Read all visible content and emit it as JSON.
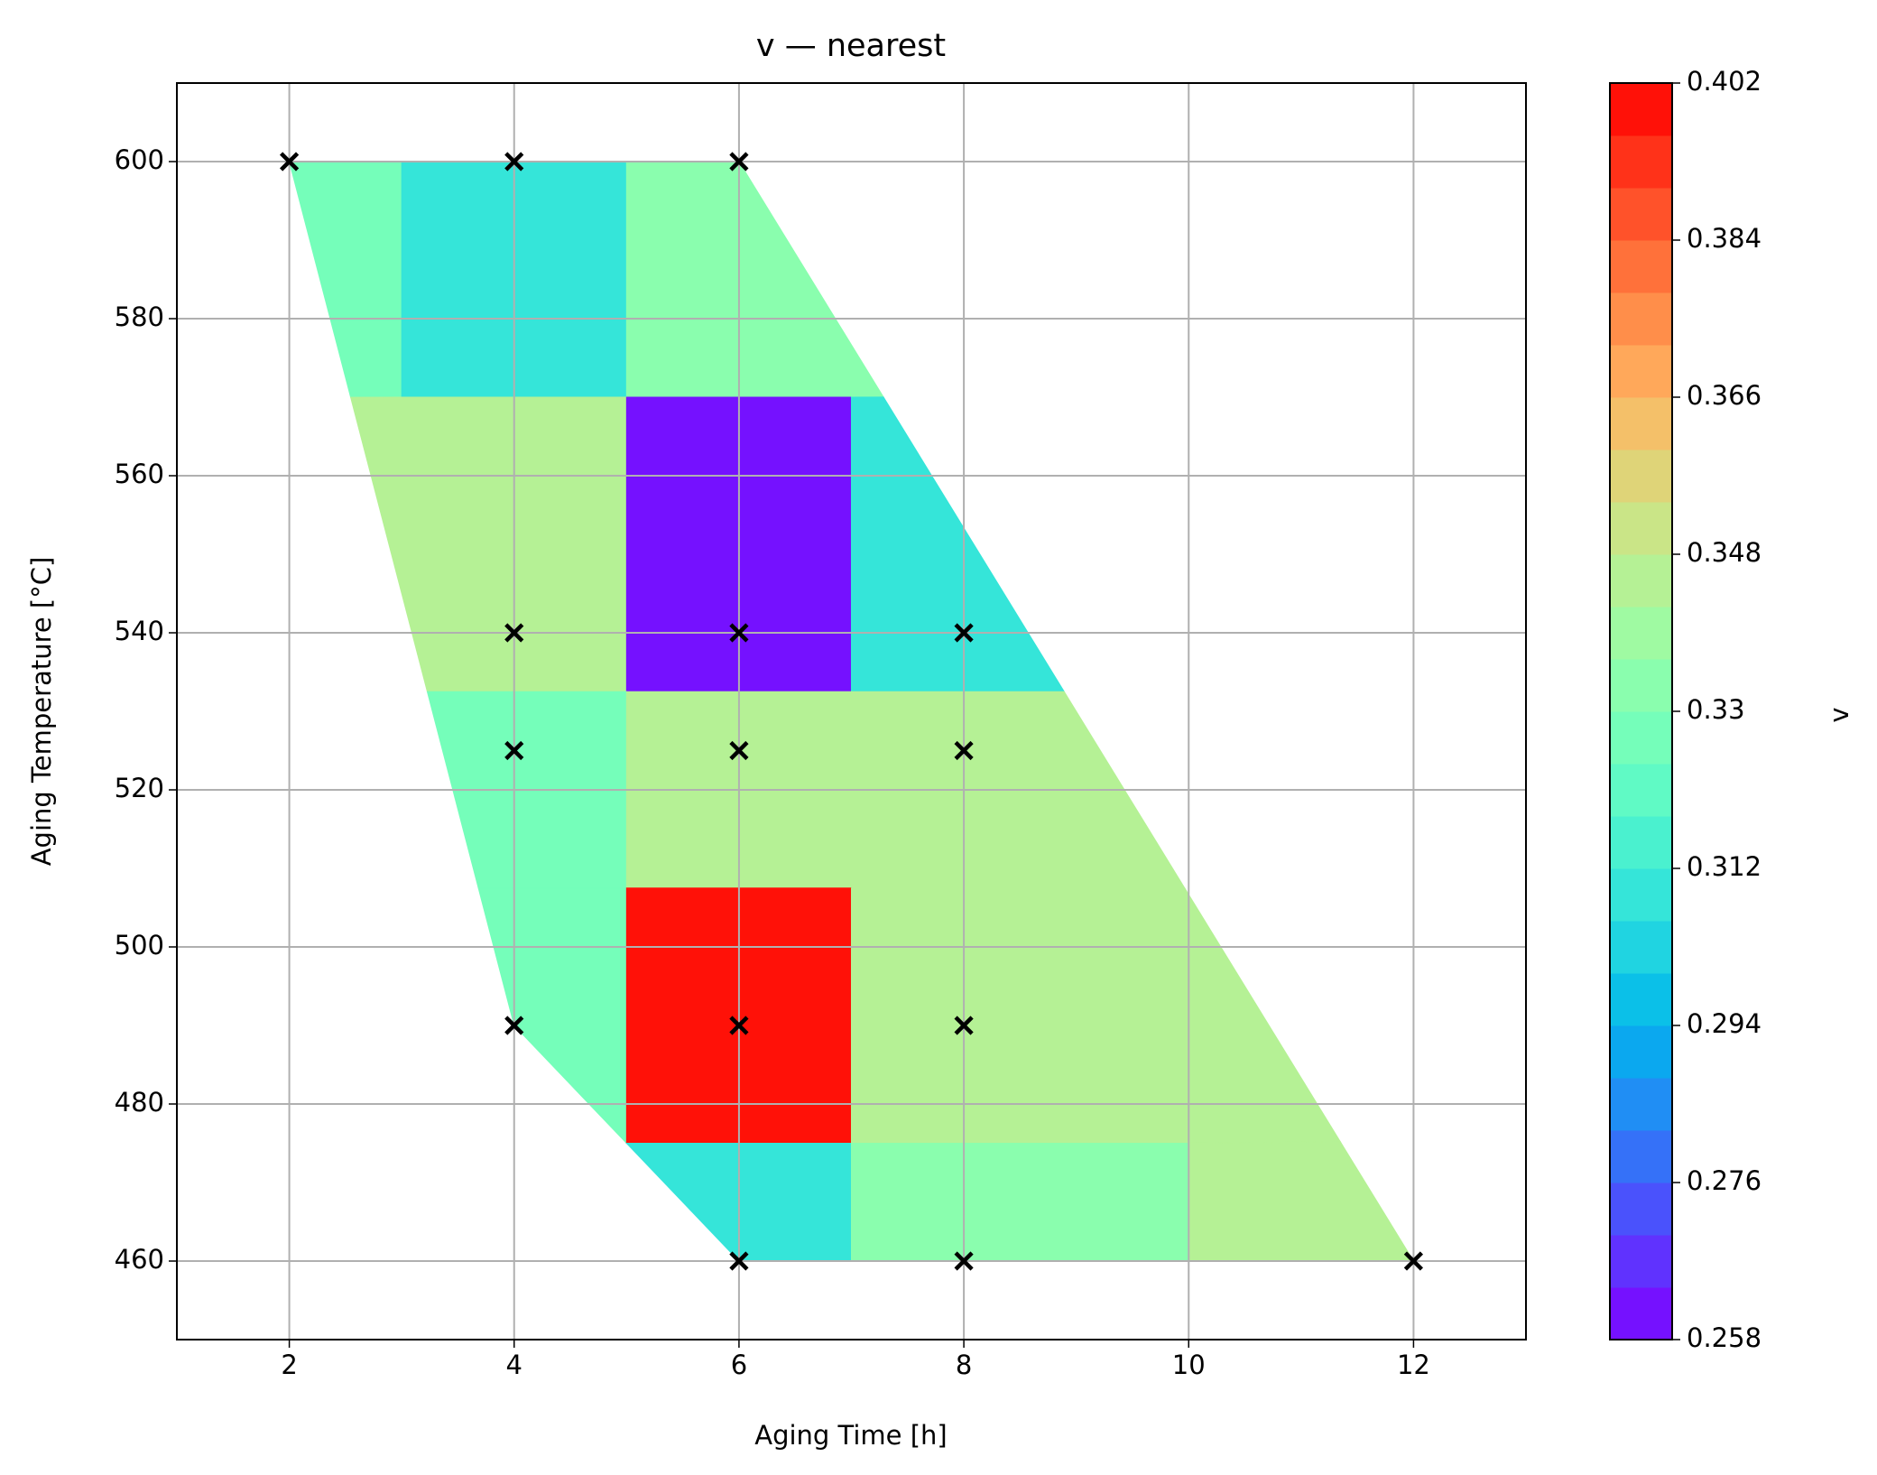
{
  "chart_data": {
    "type": "nearest-heatmap",
    "title": "v — nearest",
    "x_label": "Aging Time [h]",
    "y_label": "Aging Temperature [°C]",
    "x": [
      2,
      4,
      6,
      4,
      6,
      8,
      4,
      6,
      8,
      4,
      6,
      8,
      6,
      8,
      12
    ],
    "y": [
      600,
      600,
      600,
      540,
      540,
      540,
      525,
      525,
      525,
      490,
      490,
      490,
      460,
      460,
      460
    ],
    "values": [
      0.324,
      0.312,
      0.33,
      0.342,
      0.258,
      0.312,
      0.327,
      0.345,
      0.345,
      0.327,
      0.402,
      0.345,
      0.312,
      0.33,
      0.345
    ],
    "marker_color": "#000000",
    "xlim": [
      1,
      13
    ],
    "xticks": [
      2,
      4,
      6,
      8,
      10,
      12
    ],
    "ylim": [
      450,
      610
    ],
    "yticks": [
      460,
      480,
      500,
      520,
      540,
      560,
      580,
      600
    ],
    "grid": true,
    "colormap": "rainbow",
    "colorbar_levels": 24,
    "colorbar": {
      "label": "v",
      "lim": [
        0.258,
        0.402
      ],
      "ticks": [
        0.258,
        0.276,
        0.294,
        0.312,
        0.33,
        0.348,
        0.366,
        0.384,
        0.402
      ]
    }
  }
}
